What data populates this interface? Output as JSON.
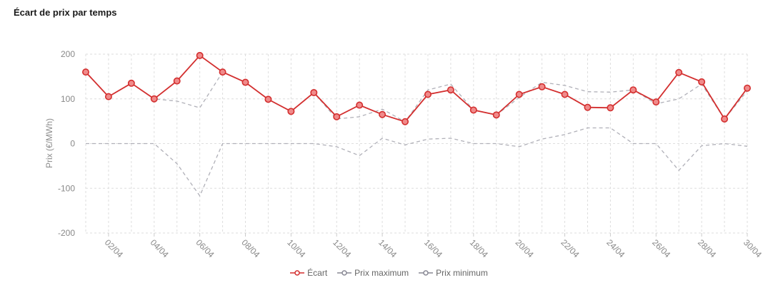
{
  "title": "Écart de prix par temps",
  "chart_data": {
    "type": "line",
    "title": "Écart de prix par temps",
    "ylabel": "Prix (€/MWh)",
    "xlabel": "",
    "ylim": [
      -200,
      200
    ],
    "yticks": [
      200,
      100,
      0,
      -100,
      -200
    ],
    "grid": true,
    "legend_position": "bottom",
    "x": [
      "01/04",
      "02/04",
      "03/04",
      "04/04",
      "05/04",
      "06/04",
      "07/04",
      "08/04",
      "09/04",
      "10/04",
      "11/04",
      "12/04",
      "13/04",
      "14/04",
      "15/04",
      "16/04",
      "17/04",
      "18/04",
      "19/04",
      "20/04",
      "21/04",
      "22/04",
      "23/04",
      "24/04",
      "25/04",
      "26/04",
      "27/04",
      "28/04",
      "29/04",
      "30/04"
    ],
    "xtick_labels": [
      "02/04",
      "04/04",
      "06/04",
      "08/04",
      "10/04",
      "12/04",
      "14/04",
      "16/04",
      "18/04",
      "20/04",
      "22/04",
      "24/04",
      "26/04",
      "28/04",
      "30/04"
    ],
    "series": [
      {
        "name": "Écart",
        "color": "#d32f2f",
        "style": "solid",
        "values": [
          160,
          105,
          135,
          100,
          140,
          197,
          160,
          137,
          99,
          72,
          114,
          60,
          86,
          65,
          49,
          110,
          120,
          75,
          64,
          110,
          127,
          110,
          81,
          80,
          120,
          93,
          159,
          138,
          55,
          124
        ]
      },
      {
        "name": "Prix maximum",
        "color": "#b0b0b8",
        "style": "dashed",
        "values": [
          160,
          105,
          135,
          100,
          95,
          80,
          160,
          137,
          99,
          72,
          114,
          55,
          60,
          77,
          49,
          120,
          133,
          75,
          64,
          103,
          137,
          130,
          116,
          115,
          120,
          89,
          100,
          133,
          55,
          118
        ]
      },
      {
        "name": "Prix minimum",
        "color": "#b0b0b8",
        "style": "dashed",
        "values": [
          0,
          0,
          0,
          0,
          -45,
          -117,
          0,
          0,
          0,
          0,
          0,
          -7,
          -27,
          12,
          -3,
          10,
          12,
          0,
          0,
          -7,
          10,
          20,
          35,
          35,
          0,
          0,
          -60,
          -5,
          0,
          -6
        ]
      }
    ]
  }
}
